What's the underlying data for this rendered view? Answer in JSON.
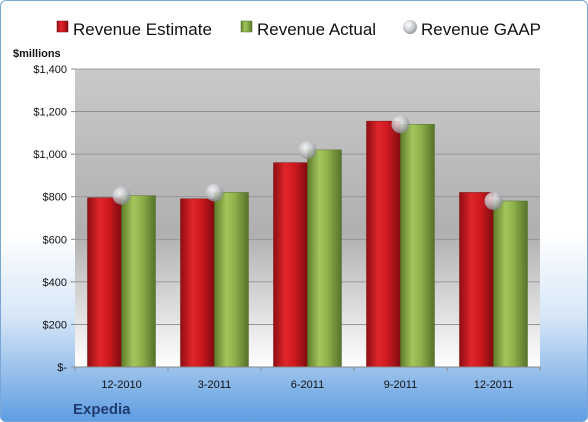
{
  "chart_data": {
    "type": "bar",
    "categories": [
      "12-2010",
      "3-2011",
      "6-2011",
      "9-2011",
      "12-2011"
    ],
    "series": [
      {
        "name": "Revenue Estimate",
        "values": [
          795,
          790,
          960,
          1155,
          820
        ],
        "color": "#d01a20"
      },
      {
        "name": "Revenue Actual",
        "values": [
          805,
          820,
          1020,
          1140,
          780
        ],
        "color": "#8db04a"
      },
      {
        "name": "Revenue GAAP",
        "values": [
          805,
          820,
          1020,
          1140,
          780
        ],
        "color": "#b9bcc2",
        "marker": "circle"
      }
    ],
    "ylabel": "$millions",
    "yticks": [
      "$-",
      "$200",
      "$400",
      "$600",
      "$800",
      "$1,000",
      "$1,200",
      "$1,400"
    ],
    "ylim": [
      0,
      1400
    ],
    "grid": true,
    "legend": "top",
    "company": "Expedia"
  }
}
